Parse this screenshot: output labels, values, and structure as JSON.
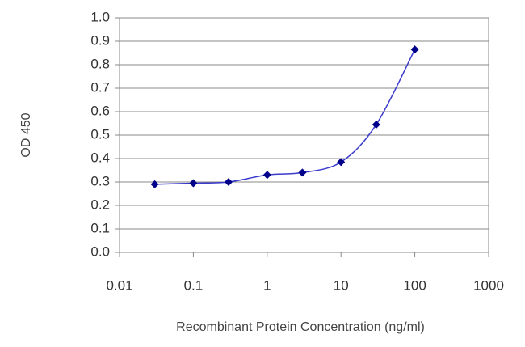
{
  "chart_data": {
    "type": "line",
    "x_label": "Recombinant Protein Concentration (ng/ml)",
    "y_label": "OD 450",
    "xscale": "log",
    "grid": true,
    "smooth": true,
    "series": [
      {
        "color": "#00008b",
        "x": [
          0.03,
          0.1,
          0.3,
          1,
          3,
          10,
          30,
          100
        ],
        "values": [
          0.29,
          0.295,
          0.3,
          0.33,
          0.34,
          0.385,
          0.545,
          0.865
        ]
      }
    ],
    "xlim": [
      0.01,
      1000
    ],
    "xticks": [
      0.01,
      0.1,
      1,
      10,
      100,
      1000
    ],
    "ylim": [
      0,
      1
    ],
    "yticks": [
      {
        "value": 0,
        "label": "0.0"
      },
      0.1,
      0.2,
      0.3,
      0.4,
      0.5,
      0.6,
      0.7,
      0.8,
      0.9,
      {
        "value": 1,
        "label": "1.0"
      }
    ]
  }
}
